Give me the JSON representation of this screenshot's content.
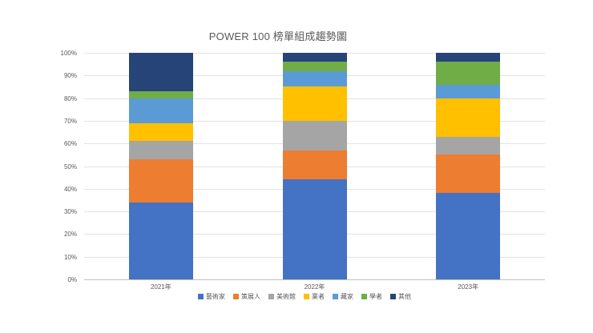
{
  "chart_data": {
    "type": "bar",
    "subtype": "stacked-100-percent",
    "title": "POWER 100 榜單組成趨勢圖",
    "categories": [
      "2021年",
      "2022年",
      "2023年"
    ],
    "series": [
      {
        "name": "藝術家",
        "color": "#4472C4",
        "values": [
          34,
          44,
          38
        ]
      },
      {
        "name": "策展人",
        "color": "#ED7D31",
        "values": [
          19,
          13,
          17
        ]
      },
      {
        "name": "美術館",
        "color": "#A5A5A5",
        "values": [
          8,
          13,
          8
        ]
      },
      {
        "name": "業者",
        "color": "#FFC000",
        "values": [
          8,
          15,
          17
        ]
      },
      {
        "name": "藏家",
        "color": "#5B9BD5",
        "values": [
          11,
          7,
          6
        ]
      },
      {
        "name": "學者",
        "color": "#70AD47",
        "values": [
          3,
          4,
          10
        ]
      },
      {
        "name": "其他",
        "color": "#264478",
        "values": [
          17,
          4,
          4
        ]
      }
    ],
    "xlabel": "",
    "ylabel": "",
    "ylim": [
      0,
      100
    ],
    "y_ticks": [
      "100%",
      "90%",
      "80%",
      "70%",
      "60%",
      "50%",
      "40%",
      "30%",
      "20%",
      "10%",
      "0%"
    ],
    "grid": true,
    "legend_position": "bottom",
    "background_color": "#ffffff",
    "gridline_color": "#e3e3e3",
    "axis_line_color": "#bfbfbf",
    "text_color": "#595959"
  }
}
